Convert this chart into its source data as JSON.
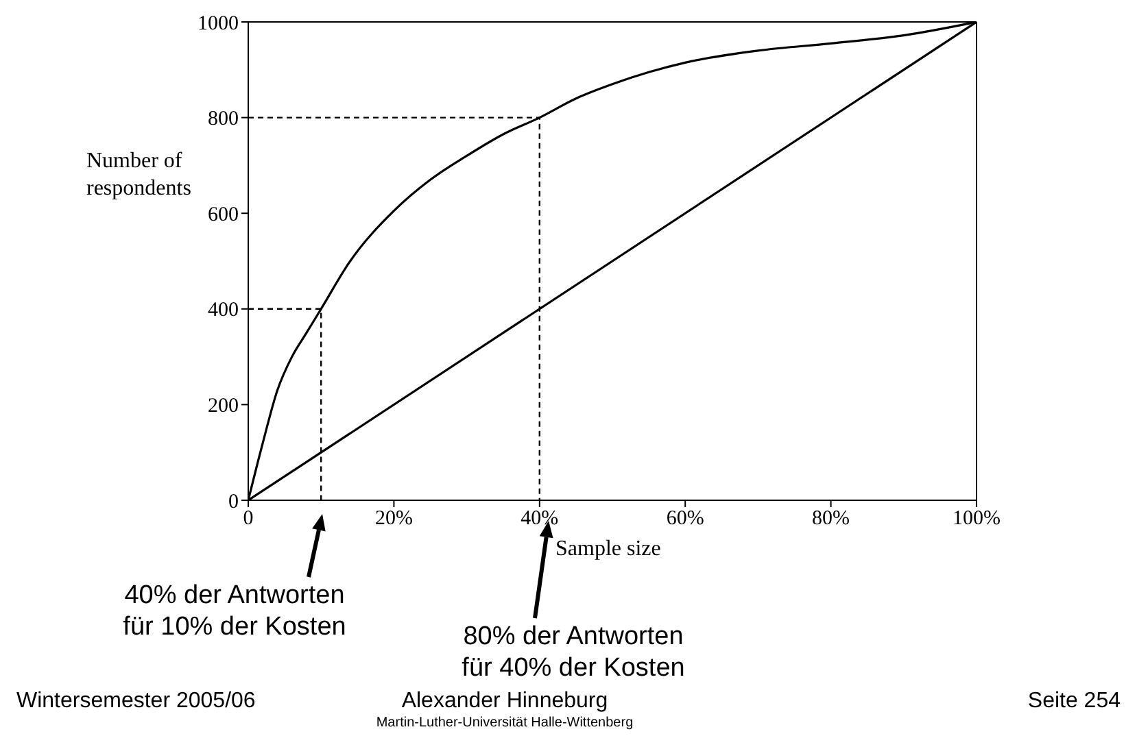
{
  "chart_data": {
    "type": "line",
    "xlabel": "Sample size",
    "ylabel": "Number of respondents",
    "xlim": [
      0,
      100
    ],
    "ylim": [
      0,
      1000
    ],
    "xticks": [
      {
        "value": 0,
        "label": "0"
      },
      {
        "value": 20,
        "label": "20%"
      },
      {
        "value": 40,
        "label": "40%"
      },
      {
        "value": 60,
        "label": "60%"
      },
      {
        "value": 80,
        "label": "80%"
      },
      {
        "value": 100,
        "label": "100%"
      }
    ],
    "yticks": [
      0,
      200,
      400,
      600,
      800,
      1000
    ],
    "marker": "none",
    "series": [
      {
        "color": "#000000",
        "line_style": "solid",
        "x": [
          0,
          2,
          4,
          6,
          8,
          10,
          14,
          20,
          25,
          30,
          35,
          40,
          45,
          50,
          55,
          60,
          70,
          80,
          90,
          100
        ],
        "values": [
          0,
          120,
          230,
          300,
          350,
          400,
          500,
          605,
          670,
          720,
          765,
          800,
          840,
          870,
          895,
          915,
          940,
          955,
          972,
          1000
        ]
      },
      {
        "color": "#000000",
        "line_style": "solid",
        "x": [
          0,
          100
        ],
        "values": [
          0,
          1000
        ]
      },
      {
        "color": "#000000",
        "line_style": "dashed",
        "x": [
          0,
          10,
          10
        ],
        "values": [
          400,
          400,
          0
        ]
      },
      {
        "color": "#000000",
        "line_style": "dashed",
        "x": [
          0,
          40,
          40
        ],
        "values": [
          800,
          800,
          0
        ]
      }
    ],
    "annotations": [
      "40% der Antworten\nfür 10% der Kosten",
      "80% der Antworten\nfür 40% der Kosten",
      "Wintersemester 2005/06",
      "Alexander Hinneburg",
      "Martin-Luther-Universität Halle-Wittenberg",
      "Seite 254"
    ]
  }
}
